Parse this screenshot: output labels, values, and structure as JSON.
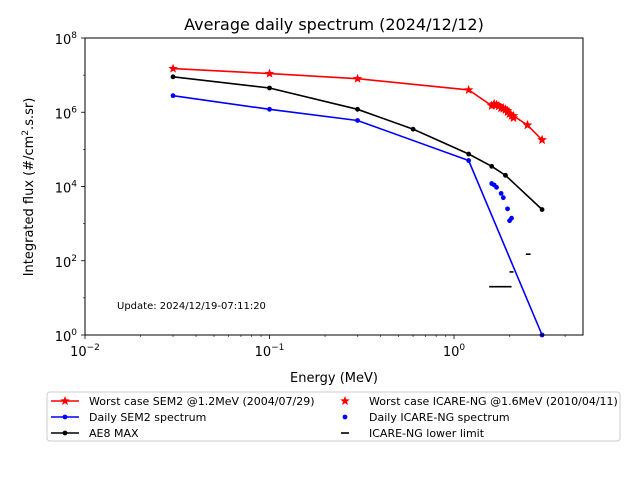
{
  "chart_data": {
    "type": "line",
    "title": "Average daily spectrum (2024/12/12)",
    "xlabel": "Energy (MeV)",
    "ylabel_main": "Integrated flux (#/cm",
    "ylabel_sup": "2",
    "ylabel_tail": ".s.sr)",
    "x_scale": "log",
    "y_scale": "log",
    "xlim": [
      0.01,
      5
    ],
    "ylim": [
      1,
      100000000
    ],
    "x_ticks": [
      {
        "value": 0.01,
        "base": "10",
        "exp": "−2"
      },
      {
        "value": 0.1,
        "base": "10",
        "exp": "−1"
      },
      {
        "value": 1,
        "base": "10",
        "exp": "0"
      }
    ],
    "y_ticks": [
      {
        "value": 1,
        "base": "10",
        "exp": "0"
      },
      {
        "value": 100,
        "base": "10",
        "exp": "2"
      },
      {
        "value": 10000,
        "base": "10",
        "exp": "4"
      },
      {
        "value": 1000000,
        "base": "10",
        "exp": "6"
      },
      {
        "value": 100000000,
        "base": "10",
        "exp": "8"
      }
    ],
    "grid": false,
    "legend_position": "below plot",
    "annotation": "Update: 2024/12/19-07:11:20",
    "series": [
      {
        "name": "Worst case SEM2 @1.2MeV (2004/07/29)",
        "style": "line-star",
        "color": "#ff0000",
        "x": [
          0.03,
          0.1,
          0.3,
          1.2,
          1.6,
          1.65,
          1.7,
          1.75,
          1.8,
          1.85,
          1.9,
          1.95,
          2.0,
          2.1,
          2.5,
          3.0
        ],
        "y": [
          15000000,
          11000000,
          8000000,
          4000000,
          1500000,
          1600000,
          1550000,
          1450000,
          1300000,
          1250000,
          1150000,
          1000000,
          900000,
          800000,
          450000,
          180000
        ]
      },
      {
        "name": "Daily SEM2 spectrum",
        "style": "line-dot",
        "color": "#0000ff",
        "x": [
          0.03,
          0.1,
          0.3,
          1.2,
          3.0
        ],
        "y": [
          2800000,
          1200000,
          600000,
          50000,
          1
        ]
      },
      {
        "name": "AE8 MAX",
        "style": "line-dot",
        "color": "#000000",
        "x": [
          0.03,
          0.1,
          0.3,
          0.6,
          1.2,
          1.6,
          1.9,
          3.0
        ],
        "y": [
          9000000,
          4500000,
          1200000,
          350000,
          75000,
          35000,
          20000,
          2400
        ]
      },
      {
        "name": "Worst case ICARE-NG @1.6MeV (2010/04/11)",
        "style": "star",
        "color": "#ff0000",
        "x": [
          1.6,
          1.65,
          1.7,
          1.75,
          1.8,
          1.85,
          1.9,
          1.95,
          2.0,
          2.05,
          2.1,
          2.5,
          3.0
        ],
        "y": [
          1500000,
          1700000,
          1600000,
          1500000,
          1300000,
          1300000,
          1200000,
          1100000,
          900000,
          800000,
          700000,
          450000,
          180000
        ]
      },
      {
        "name": "Daily ICARE-NG spectrum",
        "style": "dot",
        "color": "#0000ff",
        "x": [
          1.6,
          1.65,
          1.7,
          1.8,
          1.85,
          1.95,
          2.0,
          2.05
        ],
        "y": [
          12000,
          11000,
          9500,
          6500,
          5000,
          2500,
          1200,
          1400
        ]
      },
      {
        "name": "ICARE-NG lower limit",
        "style": "dash",
        "color": "#000000",
        "segments": [
          {
            "x": [
              1.55,
              2.05
            ],
            "y": 20
          },
          {
            "x": 2.0,
            "x2": 2.1,
            "y": 50
          },
          {
            "x": 2.45,
            "x2": 2.6,
            "y": 150
          }
        ]
      }
    ]
  },
  "legend": {
    "col1": [
      {
        "label": "Worst case SEM2 @1.2MeV (2004/07/29)",
        "marker": "line-star",
        "color": "#ff0000"
      },
      {
        "label": "Daily SEM2 spectrum",
        "marker": "line-dot",
        "color": "#0000ff"
      },
      {
        "label": "AE8 MAX",
        "marker": "line-dot",
        "color": "#000000"
      }
    ],
    "col2": [
      {
        "label": "Worst case ICARE-NG @1.6MeV (2010/04/11)",
        "marker": "star",
        "color": "#ff0000"
      },
      {
        "label": "Daily ICARE-NG spectrum",
        "marker": "dot",
        "color": "#0000ff"
      },
      {
        "label": "ICARE-NG lower limit",
        "marker": "dash",
        "color": "#000000"
      }
    ]
  }
}
